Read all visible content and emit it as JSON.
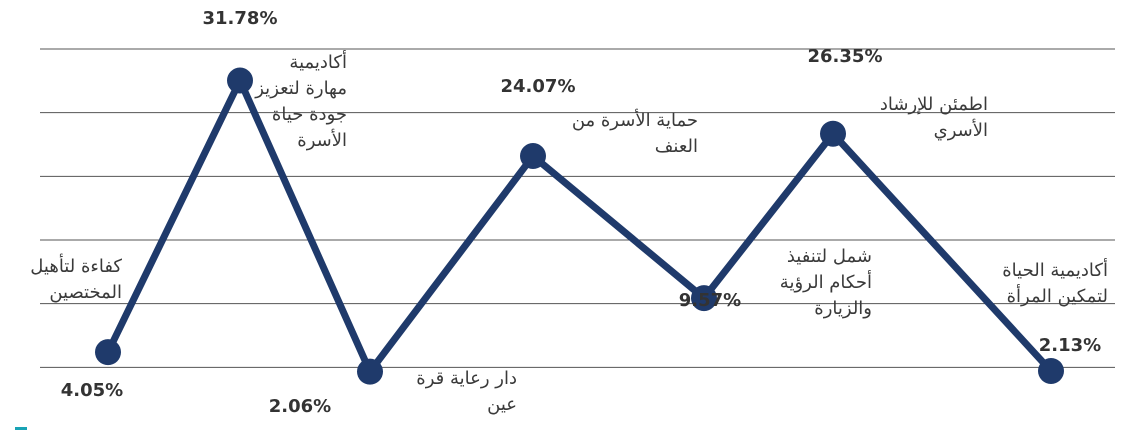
{
  "chart_data": {
    "type": "line",
    "categories": [
      "كفاءة لتأهيل المختصين",
      "أكاديمية مهارة لتعزيز جودة حياة الأسرة",
      "دار رعاية قرة عين",
      "حماية الأسرة من العنف",
      "شمل لتنفيذ أحكام الرؤية والزيارة",
      "اطمئن للإرشاد الأسري",
      "أكاديمية الحياة لتمكين المرأة"
    ],
    "values": [
      4.05,
      31.78,
      2.06,
      24.07,
      9.57,
      26.35,
      2.13
    ],
    "value_labels": [
      "4.05%",
      "31.78%",
      "2.06%",
      "24.07%",
      "9.57%",
      "26.35%",
      "2.13%"
    ],
    "color": "#1f3a6b",
    "ylim": [
      -4,
      40
    ],
    "yticks": [
      2.5,
      9,
      15.5,
      22,
      28.5,
      35
    ],
    "grid": true
  }
}
